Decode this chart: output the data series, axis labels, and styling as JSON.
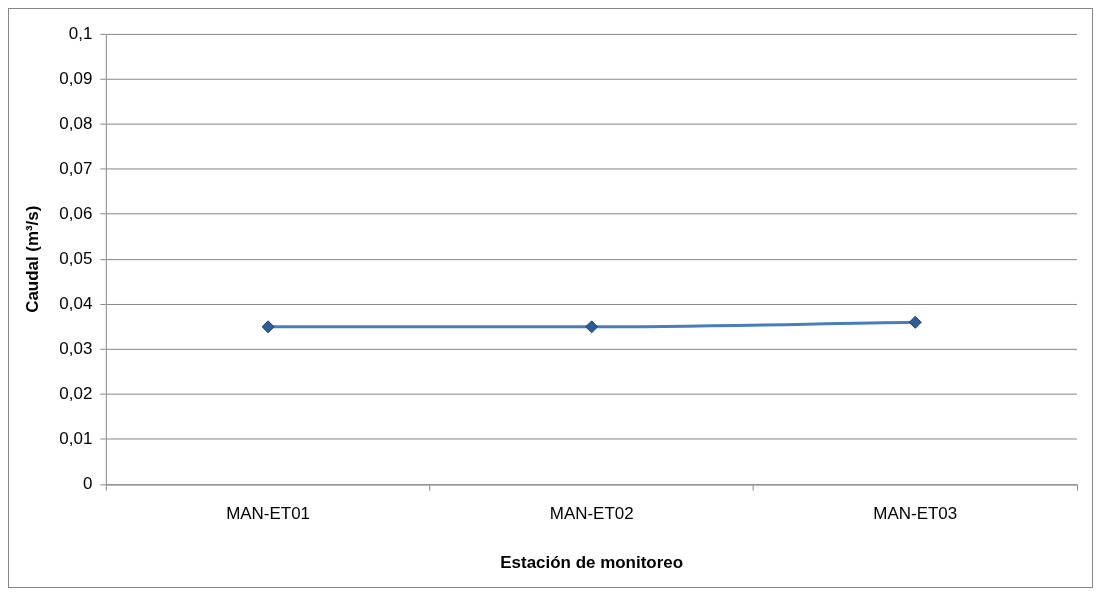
{
  "chart_data": {
    "type": "line",
    "xlabel": "Estación de monitoreo",
    "ylabel": "Caudal (m³/s)",
    "categories": [
      "MAN-ET01",
      "MAN-ET02",
      "MAN-ET03"
    ],
    "series": [
      {
        "color": "#4a7ebb",
        "values": [
          0.035,
          0.035,
          0.036
        ]
      }
    ],
    "ylim": [
      0,
      0.1
    ],
    "yticks": [
      0,
      {
        "value": 0.01,
        "label": "0,01"
      },
      {
        "value": 0.02,
        "label": "0,02"
      },
      {
        "value": 0.03,
        "label": "0,03"
      },
      {
        "value": 0.04,
        "label": "0,04"
      },
      {
        "value": 0.05,
        "label": "0,05"
      },
      {
        "value": 0.06,
        "label": "0,06"
      },
      {
        "value": 0.07,
        "label": "0,07"
      },
      {
        "value": 0.08,
        "label": "0,08"
      },
      {
        "value": 0.09,
        "label": "0,09"
      },
      {
        "value": 0.1,
        "label": "0,1"
      }
    ],
    "grid": "y",
    "legend": false,
    "marker": "diamond",
    "line_style": "solid"
  }
}
